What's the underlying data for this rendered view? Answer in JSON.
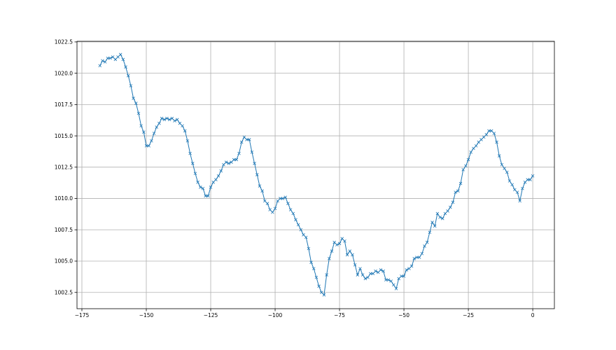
{
  "chart_data": {
    "type": "line",
    "title": "",
    "xlabel": "",
    "ylabel": "",
    "xlim": [
      -176.9,
      8.4
    ],
    "ylim": [
      1001.2,
      1022.55
    ],
    "xticks": [
      -175,
      -150,
      -125,
      -100,
      -75,
      -50,
      -25,
      0
    ],
    "xtick_labels": [
      "−175",
      "−150",
      "−125",
      "−100",
      "−75",
      "−50",
      "−25",
      "0"
    ],
    "yticks": [
      1002.5,
      1005.0,
      1007.5,
      1010.0,
      1012.5,
      1015.0,
      1017.5,
      1020.0,
      1022.5
    ],
    "ytick_labels": [
      "1002.5",
      "1005.0",
      "1007.5",
      "1010.0",
      "1012.5",
      "1015.0",
      "1017.5",
      "1020.0",
      "1022.5"
    ],
    "grid": true,
    "marker": "x",
    "color": "#1f77b4",
    "grid_color": "#b0b0b0",
    "series": [
      {
        "x": [
          -168,
          -167,
          -166,
          -165,
          -164,
          -163,
          -162,
          -161,
          -160,
          -159,
          -158,
          -157,
          -156,
          -155,
          -154,
          -153,
          -152,
          -151,
          -150,
          -149,
          -148,
          -147,
          -146,
          -145,
          -144,
          -143,
          -142,
          -141,
          -140,
          -139,
          -138,
          -137,
          -136,
          -135,
          -134,
          -133,
          -132,
          -131,
          -130,
          -129,
          -128,
          -127,
          -126,
          -125,
          -124,
          -123,
          -122,
          -121,
          -120,
          -119,
          -118,
          -117,
          -116,
          -115,
          -114,
          -113,
          -112,
          -111,
          -110,
          -109,
          -108,
          -107,
          -106,
          -105,
          -104,
          -103,
          -102,
          -101,
          -100,
          -99,
          -98,
          -97,
          -96,
          -95,
          -94,
          -93,
          -92,
          -91,
          -90,
          -89,
          -88,
          -87,
          -86,
          -85,
          -84,
          -83,
          -82,
          -81,
          -80,
          -79,
          -78,
          -77,
          -76,
          -75,
          -74,
          -73,
          -72,
          -71,
          -70,
          -69,
          -68,
          -67,
          -66,
          -65,
          -64,
          -63,
          -62,
          -61,
          -60,
          -59,
          -58,
          -57,
          -56,
          -55,
          -54,
          -53,
          -52,
          -51,
          -50,
          -49,
          -48,
          -47,
          -46,
          -45,
          -44,
          -43,
          -42,
          -41,
          -40,
          -39,
          -38,
          -37,
          -36,
          -35,
          -34,
          -33,
          -32,
          -31,
          -30,
          -29,
          -28,
          -27,
          -26,
          -25,
          -24,
          -23,
          -22,
          -21,
          -20,
          -19,
          -18,
          -17,
          -16,
          -15,
          -14,
          -13,
          -12,
          -11,
          -10,
          -9,
          -8,
          -7,
          -6,
          -5,
          -4,
          -3,
          -2,
          -1,
          0
        ],
        "y": [
          1020.6,
          1021.0,
          1020.9,
          1021.2,
          1021.2,
          1021.3,
          1021.1,
          1021.3,
          1021.5,
          1021.1,
          1020.5,
          1019.8,
          1019.0,
          1018.0,
          1017.6,
          1016.8,
          1015.8,
          1015.3,
          1014.2,
          1014.2,
          1014.6,
          1015.2,
          1015.7,
          1016.0,
          1016.4,
          1016.3,
          1016.4,
          1016.3,
          1016.4,
          1016.2,
          1016.3,
          1016.0,
          1015.8,
          1015.4,
          1014.6,
          1013.6,
          1012.8,
          1012.0,
          1011.3,
          1010.9,
          1010.8,
          1010.2,
          1010.2,
          1010.9,
          1011.3,
          1011.5,
          1011.8,
          1012.2,
          1012.7,
          1012.9,
          1012.8,
          1012.9,
          1013.1,
          1013.1,
          1013.6,
          1014.5,
          1014.9,
          1014.7,
          1014.7,
          1013.7,
          1012.8,
          1011.9,
          1011.0,
          1010.6,
          1009.8,
          1009.6,
          1009.1,
          1008.9,
          1009.2,
          1009.8,
          1010.0,
          1010.0,
          1010.1,
          1009.6,
          1009.1,
          1008.8,
          1008.3,
          1007.9,
          1007.5,
          1007.1,
          1006.9,
          1006.0,
          1004.9,
          1004.4,
          1003.7,
          1003.0,
          1002.5,
          1002.3,
          1003.9,
          1005.2,
          1005.8,
          1006.5,
          1006.3,
          1006.4,
          1006.8,
          1006.6,
          1005.5,
          1005.8,
          1005.5,
          1004.7,
          1003.9,
          1004.4,
          1003.9,
          1003.6,
          1003.7,
          1004.0,
          1004.0,
          1004.2,
          1004.1,
          1004.3,
          1004.2,
          1003.5,
          1003.5,
          1003.4,
          1003.1,
          1002.8,
          1003.6,
          1003.8,
          1003.8,
          1004.3,
          1004.4,
          1004.6,
          1005.2,
          1005.3,
          1005.3,
          1005.6,
          1006.2,
          1006.5,
          1007.3,
          1008.1,
          1007.8,
          1008.8,
          1008.5,
          1008.4,
          1008.8,
          1009.0,
          1009.3,
          1009.7,
          1010.5,
          1010.6,
          1011.2,
          1012.3,
          1012.6,
          1013.1,
          1013.7,
          1014.0,
          1014.2,
          1014.5,
          1014.7,
          1014.9,
          1015.1,
          1015.4,
          1015.4,
          1015.2,
          1014.5,
          1013.4,
          1012.7,
          1012.4,
          1012.1,
          1011.4,
          1011.1,
          1010.7,
          1010.5,
          1009.8,
          1010.8,
          1011.3,
          1011.5,
          1011.5,
          1011.8
        ]
      }
    ]
  }
}
